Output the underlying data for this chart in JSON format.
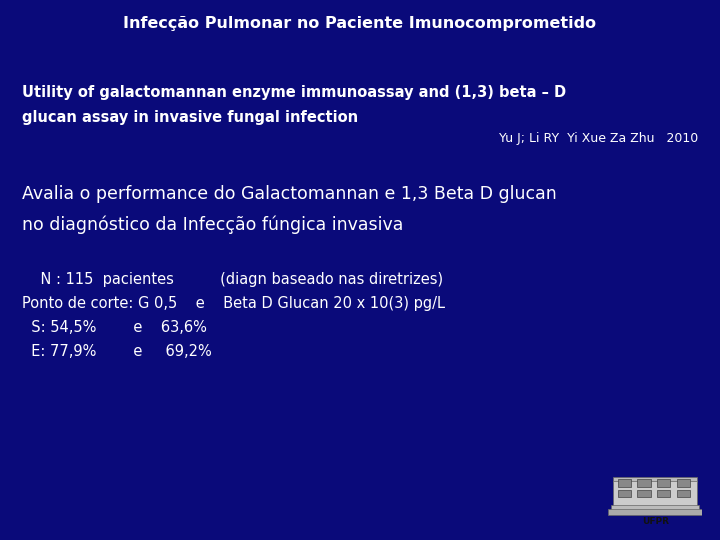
{
  "bg_color": "#0a0a7a",
  "title": "Infecção Pulmonar no Paciente Imunocomprometido",
  "title_color": "#ffffff",
  "title_fontsize": 11.5,
  "title_bold": true,
  "subtitle_line1": "Utility of galactomannan enzyme immunoassay and (1,3) beta – D",
  "subtitle_line2": "glucan assay in invasive fungal infection",
  "subtitle_color": "#ffffff",
  "subtitle_fontsize": 10.5,
  "subtitle_bold": true,
  "ref_line": "Yu J; Li RY  Yi Xue Za Zhu   2010",
  "ref_color": "#ffffff",
  "ref_fontsize": 9,
  "body_line1": "Avalia o performance do Galactomannan e 1,3 Beta D glucan",
  "body_line2": "no diagnóstico da Infecção fúngica invasiva",
  "body_color": "#ffffff",
  "body_fontsize": 12.5,
  "detail_lines": [
    "    N : 115  pacientes          (diagn baseado nas diretrizes)",
    "Ponto de corte: G 0,5    e    Beta D Glucan 20 x 10(3) pg/L",
    "  S: 54,5%        e    63,6%",
    "  E: 77,9%        e     69,2%"
  ],
  "detail_color": "#ffffff",
  "detail_fontsize": 10.5,
  "fig_width": 7.2,
  "fig_height": 5.4,
  "dpi": 100
}
